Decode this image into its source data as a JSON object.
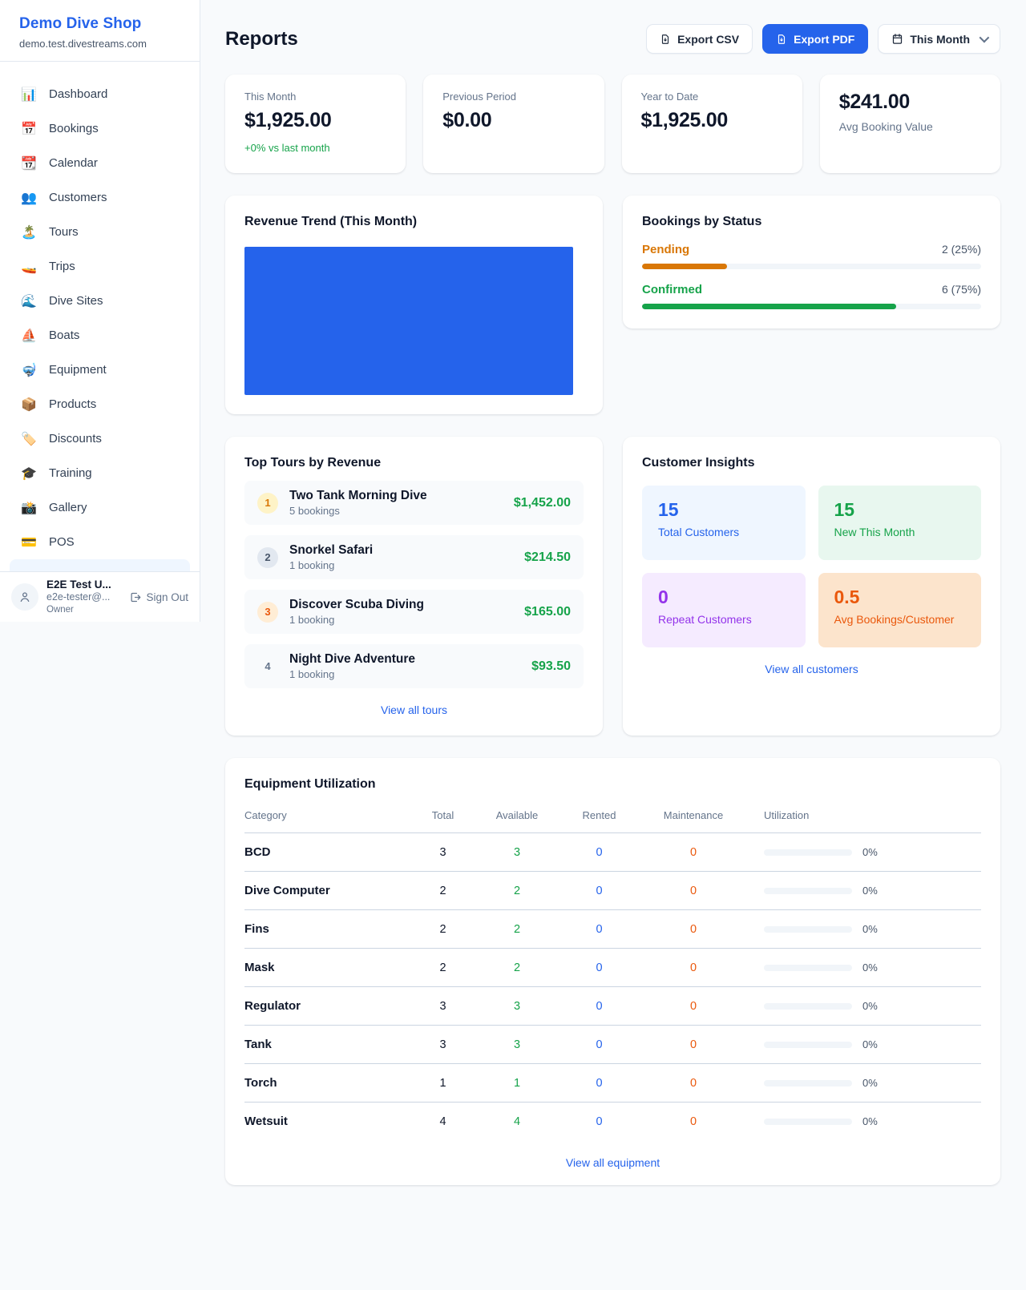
{
  "app": {
    "shop_name": "Demo Dive Shop",
    "shop_domain": "demo.test.divestreams.com"
  },
  "sidebar": {
    "items": [
      {
        "name": "dashboard",
        "icon": "📊",
        "label": "Dashboard"
      },
      {
        "name": "bookings",
        "icon": "📅",
        "label": "Bookings"
      },
      {
        "name": "calendar",
        "icon": "📆",
        "label": "Calendar"
      },
      {
        "name": "customers",
        "icon": "👥",
        "label": "Customers"
      },
      {
        "name": "tours",
        "icon": "🏝️",
        "label": "Tours"
      },
      {
        "name": "trips",
        "icon": "🚤",
        "label": "Trips"
      },
      {
        "name": "dive-sites",
        "icon": "🌊",
        "label": "Dive Sites"
      },
      {
        "name": "boats",
        "icon": "⛵",
        "label": "Boats"
      },
      {
        "name": "equipment",
        "icon": "🤿",
        "label": "Equipment"
      },
      {
        "name": "products",
        "icon": "📦",
        "label": "Products"
      },
      {
        "name": "discounts",
        "icon": "🏷️",
        "label": "Discounts"
      },
      {
        "name": "training",
        "icon": "🎓",
        "label": "Training"
      },
      {
        "name": "gallery",
        "icon": "📸",
        "label": "Gallery"
      },
      {
        "name": "pos",
        "icon": "💳",
        "label": "POS"
      }
    ],
    "user": {
      "name": "E2E Test U...",
      "email": "e2e-tester@...",
      "role": "Owner",
      "sign_out_label": "Sign Out"
    }
  },
  "header": {
    "title": "Reports",
    "export_csv_label": "Export CSV",
    "export_pdf_label": "Export PDF",
    "period_selector_label": "This Month"
  },
  "stats": [
    {
      "label": "This Month",
      "value": "$1,925.00",
      "delta": "+0% vs last month",
      "layout": "label-top"
    },
    {
      "label": "Previous Period",
      "value": "$0.00",
      "delta": "",
      "layout": "label-top"
    },
    {
      "label": "Year to Date",
      "value": "$1,925.00",
      "delta": "",
      "layout": "label-top"
    },
    {
      "label": "Avg Booking Value",
      "value": "$241.00",
      "delta": "",
      "layout": "value-top"
    }
  ],
  "revenue_trend": {
    "title": "Revenue Trend (This Month)",
    "bar_color": "#2563eb"
  },
  "bookings_by_status": {
    "title": "Bookings by Status",
    "rows": [
      {
        "label": "Pending",
        "count_text": "2 (25%)",
        "pct": 25,
        "color": "#d97706",
        "bar_color": "#d97706"
      },
      {
        "label": "Confirmed",
        "count_text": "6 (75%)",
        "pct": 75,
        "color": "#16a34a",
        "bar_color": "#16a34a"
      }
    ]
  },
  "top_tours": {
    "title": "Top Tours by Revenue",
    "rows": [
      {
        "rank": "1",
        "name": "Two Tank Morning Dive",
        "bookings": "5 bookings",
        "revenue": "$1,452.00",
        "badge_bg": "#fef3c7",
        "badge_color": "#d97706"
      },
      {
        "rank": "2",
        "name": "Snorkel Safari",
        "bookings": "1 booking",
        "revenue": "$214.50",
        "badge_bg": "#e2e8f0",
        "badge_color": "#475569"
      },
      {
        "rank": "3",
        "name": "Discover Scuba Diving",
        "bookings": "1 booking",
        "revenue": "$165.00",
        "badge_bg": "#ffedd5",
        "badge_color": "#ea580c"
      },
      {
        "rank": "4",
        "name": "Night Dive Adventure",
        "bookings": "1 booking",
        "revenue": "$93.50",
        "badge_bg": "transparent",
        "badge_color": "#64748b"
      }
    ],
    "view_all_label": "View all tours"
  },
  "customer_insights": {
    "title": "Customer Insights",
    "tiles": [
      {
        "value": "15",
        "label": "Total Customers",
        "bg": "#eff6ff",
        "color": "#2563eb"
      },
      {
        "value": "15",
        "label": "New This Month",
        "bg": "#e8f7ef",
        "color": "#16a34a"
      },
      {
        "value": "0",
        "label": "Repeat Customers",
        "bg": "#f5ebff",
        "color": "#9333ea"
      },
      {
        "value": "0.5",
        "label": "Avg Bookings/Customer",
        "bg": "#fce4cc",
        "color": "#ea580c"
      }
    ],
    "view_all_label": "View all customers"
  },
  "equipment": {
    "title": "Equipment Utilization",
    "columns": [
      "Category",
      "Total",
      "Available",
      "Rented",
      "Maintenance",
      "Utilization"
    ],
    "rows": [
      {
        "category": "BCD",
        "total": "3",
        "available": "3",
        "rented": "0",
        "maintenance": "0",
        "utilization": "0%"
      },
      {
        "category": "Dive Computer",
        "total": "2",
        "available": "2",
        "rented": "0",
        "maintenance": "0",
        "utilization": "0%"
      },
      {
        "category": "Fins",
        "total": "2",
        "available": "2",
        "rented": "0",
        "maintenance": "0",
        "utilization": "0%"
      },
      {
        "category": "Mask",
        "total": "2",
        "available": "2",
        "rented": "0",
        "maintenance": "0",
        "utilization": "0%"
      },
      {
        "category": "Regulator",
        "total": "3",
        "available": "3",
        "rented": "0",
        "maintenance": "0",
        "utilization": "0%"
      },
      {
        "category": "Tank",
        "total": "3",
        "available": "3",
        "rented": "0",
        "maintenance": "0",
        "utilization": "0%"
      },
      {
        "category": "Torch",
        "total": "1",
        "available": "1",
        "rented": "0",
        "maintenance": "0",
        "utilization": "0%"
      },
      {
        "category": "Wetsuit",
        "total": "4",
        "available": "4",
        "rented": "0",
        "maintenance": "0",
        "utilization": "0%"
      }
    ],
    "view_all_label": "View all equipment"
  }
}
